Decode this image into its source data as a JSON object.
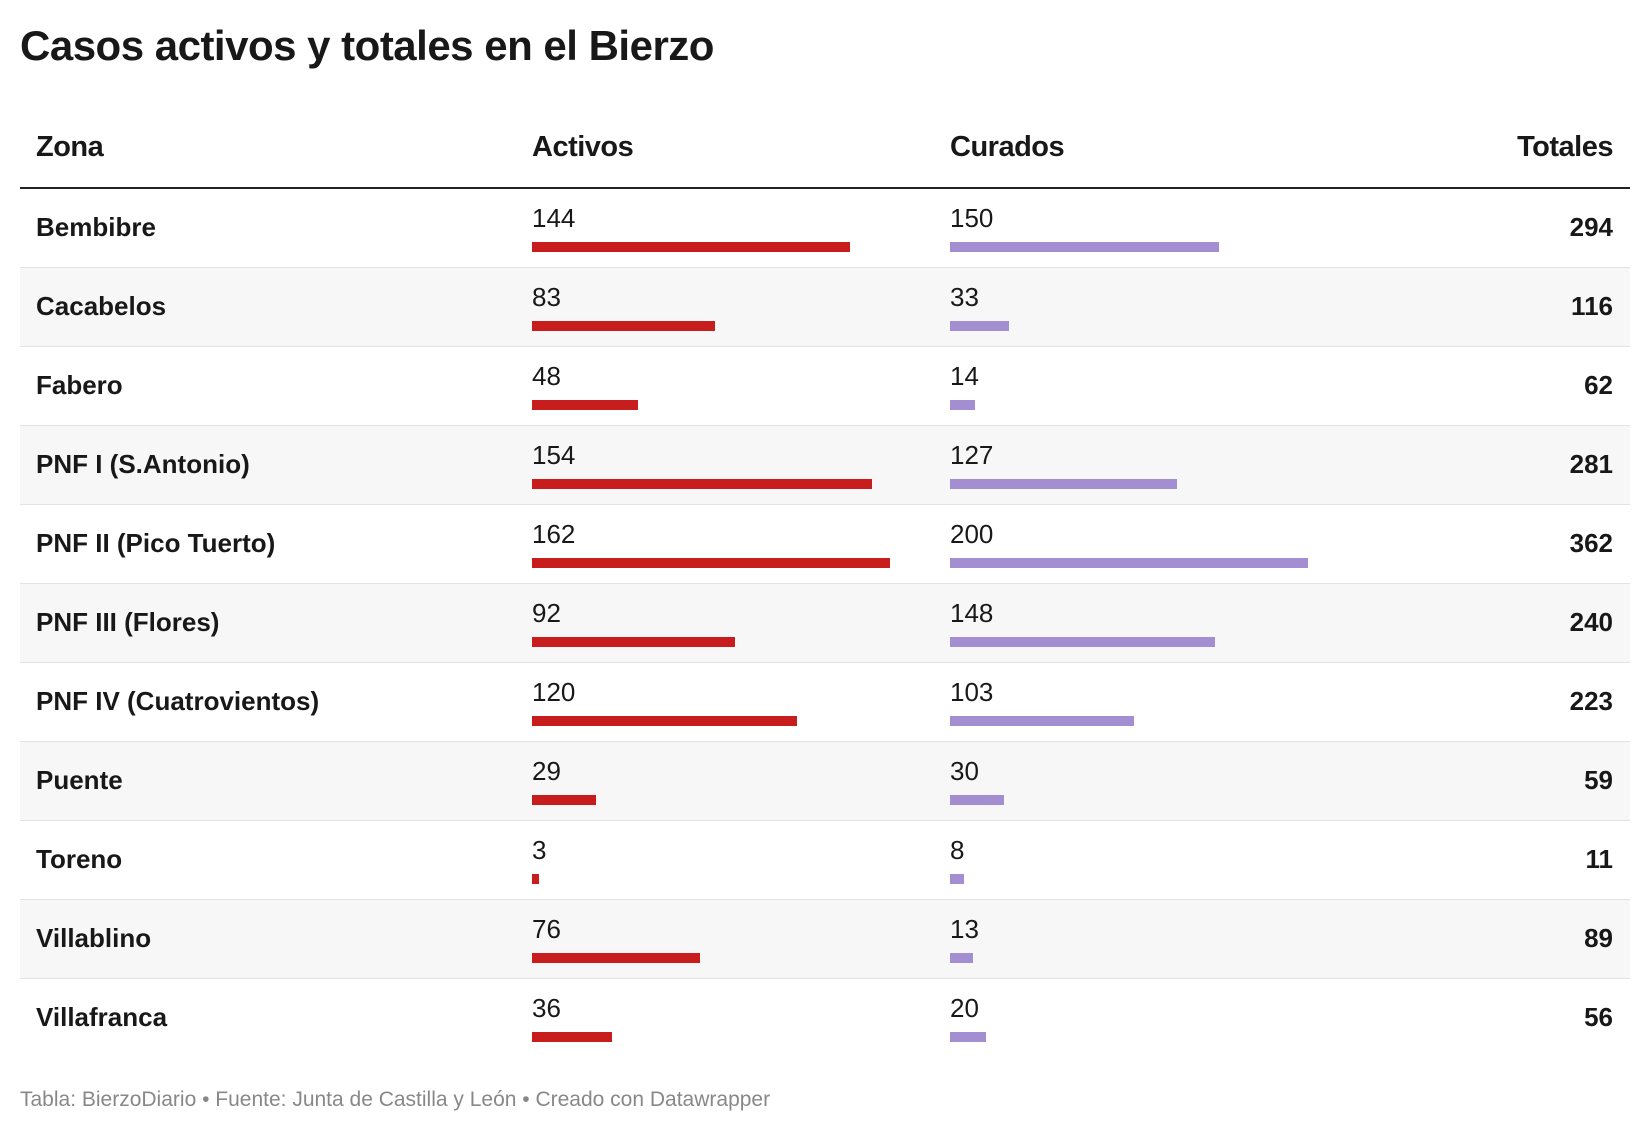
{
  "title": "Casos activos y totales en el Bierzo",
  "colors": {
    "activos": "#c71e1d",
    "curados": "#a28ed0",
    "curados_column_bg": "#f0f0f0"
  },
  "headers": {
    "zona": "Zona",
    "activos": "Activos",
    "curados": "Curados",
    "totales": "Totales"
  },
  "chart_data": {
    "type": "table",
    "title": "Casos activos y totales en el Bierzo",
    "columns": [
      "Zona",
      "Activos",
      "Curados",
      "Totales"
    ],
    "bar_max": {
      "activos": 162,
      "curados": 200
    },
    "rows": [
      {
        "zona": "Bembibre",
        "activos": 144,
        "curados": 150,
        "totales": 294
      },
      {
        "zona": "Cacabelos",
        "activos": 83,
        "curados": 33,
        "totales": 116
      },
      {
        "zona": "Fabero",
        "activos": 48,
        "curados": 14,
        "totales": 62
      },
      {
        "zona": "PNF I (S.Antonio)",
        "activos": 154,
        "curados": 127,
        "totales": 281
      },
      {
        "zona": "PNF II (Pico Tuerto)",
        "activos": 162,
        "curados": 200,
        "totales": 362
      },
      {
        "zona": "PNF III (Flores)",
        "activos": 92,
        "curados": 148,
        "totales": 240
      },
      {
        "zona": "PNF IV (Cuatrovientos)",
        "activos": 120,
        "curados": 103,
        "totales": 223
      },
      {
        "zona": "Puente",
        "activos": 29,
        "curados": 30,
        "totales": 59
      },
      {
        "zona": "Toreno",
        "activos": 3,
        "curados": 8,
        "totales": 11
      },
      {
        "zona": "Villablino",
        "activos": 76,
        "curados": 13,
        "totales": 89
      },
      {
        "zona": "Villafranca",
        "activos": 36,
        "curados": 20,
        "totales": 56
      }
    ]
  },
  "footer": "Tabla: BierzoDiario • Fuente: Junta de Castilla y León • Creado con Datawrapper"
}
